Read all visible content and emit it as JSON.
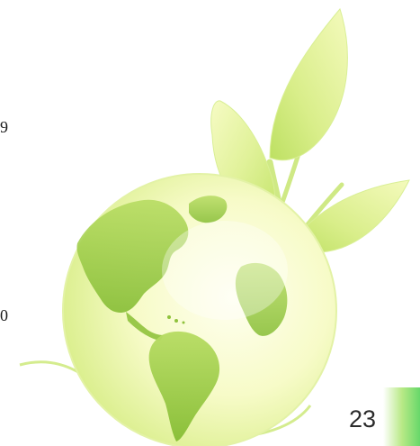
{
  "slide": {
    "left_edge_texts": [
      "9",
      "0"
    ],
    "page_number": "23"
  },
  "illustration": {
    "name": "eco-globe-with-sprout",
    "colors": {
      "leaf_light": "#eef7b0",
      "leaf_dark": "#b9df5a",
      "ocean_light": "#fdfde0",
      "land": "#9ccc48",
      "land_dark": "#78b02c",
      "accent_green": "#67d86a"
    }
  }
}
